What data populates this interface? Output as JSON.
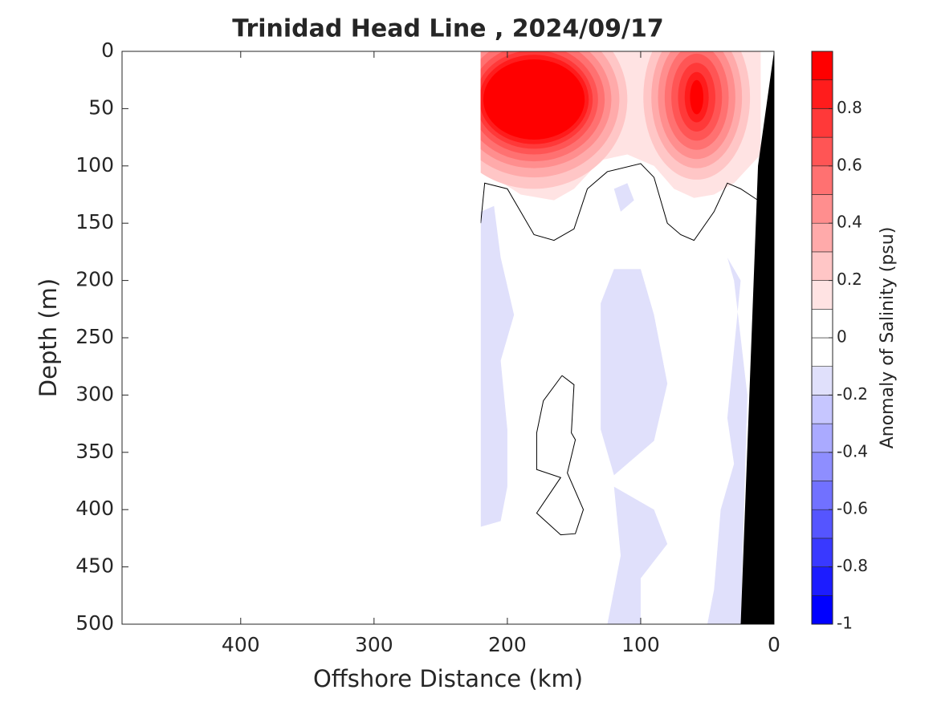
{
  "chart_data": {
    "type": "contour",
    "title": "Trinidad Head Line , 2024/09/17",
    "xlabel": "Offshore Distance (km)",
    "ylabel": "Depth (m)",
    "xlim": [
      489,
      0
    ],
    "ylim": [
      0,
      500
    ],
    "xticks": [
      400,
      300,
      200,
      100,
      0
    ],
    "yticks": [
      0,
      50,
      100,
      150,
      200,
      250,
      300,
      350,
      400,
      450,
      500
    ],
    "colorbar": {
      "label": "Anomaly of Salinity (psu)",
      "clim": [
        -1,
        1
      ],
      "ticks": [
        -1,
        -0.8,
        -0.6,
        -0.4,
        -0.2,
        0,
        0.2,
        0.4,
        0.6,
        0.8
      ],
      "colors": [
        "#0000ff",
        "#1c1cff",
        "#3939ff",
        "#5555ff",
        "#7171ff",
        "#8e8eff",
        "#aaaaff",
        "#c6c6ff",
        "#e0e0fb",
        "#ffffff",
        "#ffffff",
        "#ffe3e3",
        "#ffc6c6",
        "#ffaaaa",
        "#ff8e8e",
        "#ff7171",
        "#ff5555",
        "#ff3939",
        "#ff1c1c",
        "#ff0000"
      ]
    },
    "section_x": [
      220,
      0
    ],
    "fills": [
      {
        "level": 0.1,
        "x": [
          220,
          10,
          10,
          30,
          45,
          60,
          75,
          90,
          110,
          130,
          150,
          165,
          190,
          210,
          220
        ],
        "y": [
          0,
          0,
          90,
          115,
          125,
          128,
          120,
          100,
          90,
          95,
          120,
          130,
          125,
          110,
          100
        ]
      },
      {
        "level": -0.2,
        "x": [
          220,
          210,
          205,
          195,
          205,
          200,
          200,
          205,
          220
        ],
        "y": [
          140,
          135,
          180,
          230,
          270,
          330,
          380,
          410,
          415
        ]
      },
      {
        "level": -0.2,
        "x": [
          120,
          100,
          90,
          80,
          90,
          120,
          130,
          130
        ],
        "y": [
          190,
          190,
          230,
          290,
          340,
          370,
          330,
          220
        ]
      },
      {
        "level": -0.2,
        "x": [
          120,
          90,
          80,
          100,
          100,
          125,
          115
        ],
        "y": [
          380,
          400,
          430,
          460,
          500,
          500,
          440
        ]
      },
      {
        "level": -0.2,
        "x": [
          35,
          25,
          30,
          35,
          30,
          40,
          45,
          50,
          25,
          20,
          30
        ],
        "y": [
          180,
          200,
          260,
          320,
          360,
          400,
          470,
          500,
          500,
          300,
          200
        ]
      },
      {
        "level": -0.2,
        "x": [
          120,
          115,
          105,
          110
        ],
        "y": [
          120,
          140,
          130,
          115
        ]
      }
    ],
    "ellipses": [
      {
        "level": 0.2,
        "cx": 180,
        "cy": 42,
        "rx": 70,
        "ry": 78
      },
      {
        "level": 0.3,
        "cx": 180,
        "cy": 42,
        "rx": 64,
        "ry": 68
      },
      {
        "level": 0.4,
        "cx": 180,
        "cy": 42,
        "rx": 58,
        "ry": 60
      },
      {
        "level": 0.5,
        "cx": 180,
        "cy": 42,
        "rx": 53,
        "ry": 54
      },
      {
        "level": 0.6,
        "cx": 180,
        "cy": 42,
        "rx": 48,
        "ry": 48
      },
      {
        "level": 0.7,
        "cx": 180,
        "cy": 42,
        "rx": 44,
        "ry": 43
      },
      {
        "level": 0.8,
        "cx": 180,
        "cy": 42,
        "rx": 41,
        "ry": 39
      },
      {
        "level": 0.9,
        "cx": 180,
        "cy": 42,
        "rx": 38,
        "ry": 35
      },
      {
        "level": 0.2,
        "cx": 58,
        "cy": 40,
        "rx": 40,
        "ry": 72
      },
      {
        "level": 0.3,
        "cx": 58,
        "cy": 40,
        "rx": 34,
        "ry": 62
      },
      {
        "level": 0.4,
        "cx": 58,
        "cy": 40,
        "rx": 29,
        "ry": 54
      },
      {
        "level": 0.5,
        "cx": 58,
        "cy": 40,
        "rx": 24,
        "ry": 46
      },
      {
        "level": 0.6,
        "cx": 58,
        "cy": 40,
        "rx": 19,
        "ry": 38
      },
      {
        "level": 0.7,
        "cx": 58,
        "cy": 40,
        "rx": 14,
        "ry": 30
      },
      {
        "level": 0.8,
        "cx": 58,
        "cy": 40,
        "rx": 9,
        "ry": 22
      },
      {
        "level": 0.9,
        "cx": 58,
        "cy": 40,
        "rx": 5,
        "ry": 15
      }
    ],
    "zero_lines": [
      {
        "x": [
          220,
          217,
          200,
          190,
          180,
          165,
          150,
          140,
          125,
          100,
          90,
          85,
          80,
          70,
          60,
          45,
          35,
          25,
          12
        ],
        "y": [
          150,
          115,
          120,
          140,
          160,
          165,
          155,
          120,
          105,
          98,
          110,
          130,
          150,
          160,
          165,
          140,
          115,
          120,
          130
        ]
      },
      {
        "x": [
          159,
          150,
          152,
          149,
          155,
          143,
          149,
          160,
          178,
          160,
          178,
          178,
          173,
          159
        ],
        "y": [
          283,
          291,
          333,
          339,
          368,
          400,
          421,
          422,
          403,
          372,
          365,
          333,
          305,
          283
        ]
      }
    ],
    "bottom": {
      "x": [
        0,
        12,
        25,
        0
      ],
      "y": [
        0,
        100,
        500,
        500
      ]
    }
  }
}
